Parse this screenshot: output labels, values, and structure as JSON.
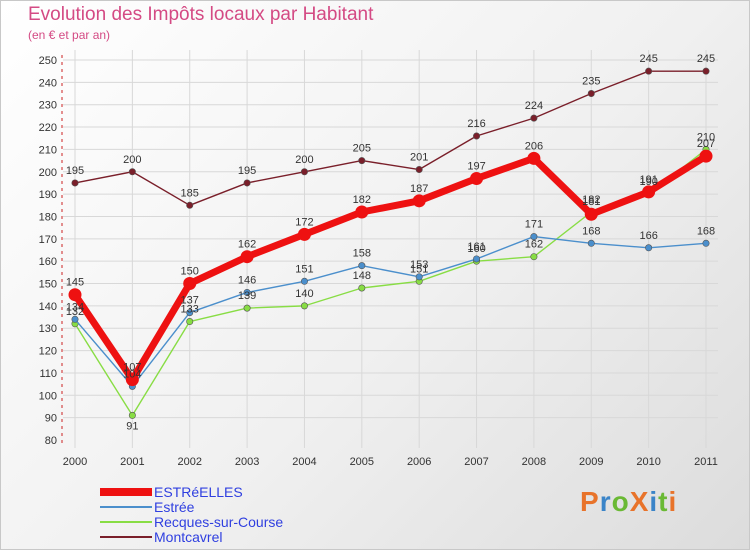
{
  "header": {
    "title": "Evolution des Impôts locaux par Habitant",
    "subtitle": "(en € et par an)"
  },
  "logo": {
    "text": "ProXiti",
    "colors": [
      "#e8732a",
      "#3a84c8",
      "#6ab934",
      "#e8732a",
      "#3a84c8",
      "#6ab934",
      "#e8732a"
    ]
  },
  "chart_data": {
    "type": "line",
    "title": "Evolution des Impôts locaux par Habitant",
    "subtitle": "(en € et par an)",
    "xlabel": "",
    "ylabel": "",
    "x": [
      "2000",
      "2001",
      "2002",
      "2003",
      "2004",
      "2005",
      "2006",
      "2007",
      "2008",
      "2009",
      "2010",
      "2011"
    ],
    "ylim": [
      80,
      250
    ],
    "yticks": [
      80,
      90,
      100,
      110,
      120,
      130,
      140,
      150,
      160,
      170,
      180,
      190,
      200,
      210,
      220,
      230,
      240,
      250
    ],
    "grid": true,
    "legend_position": "bottom-left",
    "series": [
      {
        "name": "ESTRéELLES",
        "color": "#ee1111",
        "values": [
          145,
          107,
          150,
          162,
          172,
          182,
          187,
          197,
          206,
          181,
          191,
          207
        ],
        "labels": [
          "145",
          "107",
          "150",
          "162",
          "172",
          "182",
          "187",
          "197",
          "206",
          "181",
          "191",
          "207"
        ]
      },
      {
        "name": "Estrée",
        "color": "#4b8fcc",
        "values": [
          134,
          104,
          137,
          146,
          151,
          158,
          153,
          161,
          171,
          168,
          166,
          168
        ],
        "labels": [
          "134",
          "104",
          "137",
          "146",
          "151",
          "158",
          "153",
          "161",
          "171",
          "168",
          "166",
          "168"
        ]
      },
      {
        "name": "Recques-sur-Course",
        "color": "#88dd44",
        "values": [
          132,
          91,
          133,
          139,
          140,
          148,
          151,
          160,
          162,
          182,
          190,
          210
        ],
        "labels": [
          "132",
          "91",
          "133",
          "139",
          "140",
          "148",
          "151",
          "160",
          "162",
          "182",
          "190",
          "210"
        ]
      },
      {
        "name": "Montcavrel",
        "color": "#7a1f2a",
        "values": [
          195,
          200,
          185,
          195,
          200,
          205,
          201,
          216,
          224,
          235,
          245,
          245
        ],
        "labels": [
          "195",
          "200",
          "185",
          "195",
          "200",
          "205",
          "201",
          "216",
          "224",
          "235",
          "245",
          "245"
        ]
      }
    ]
  }
}
